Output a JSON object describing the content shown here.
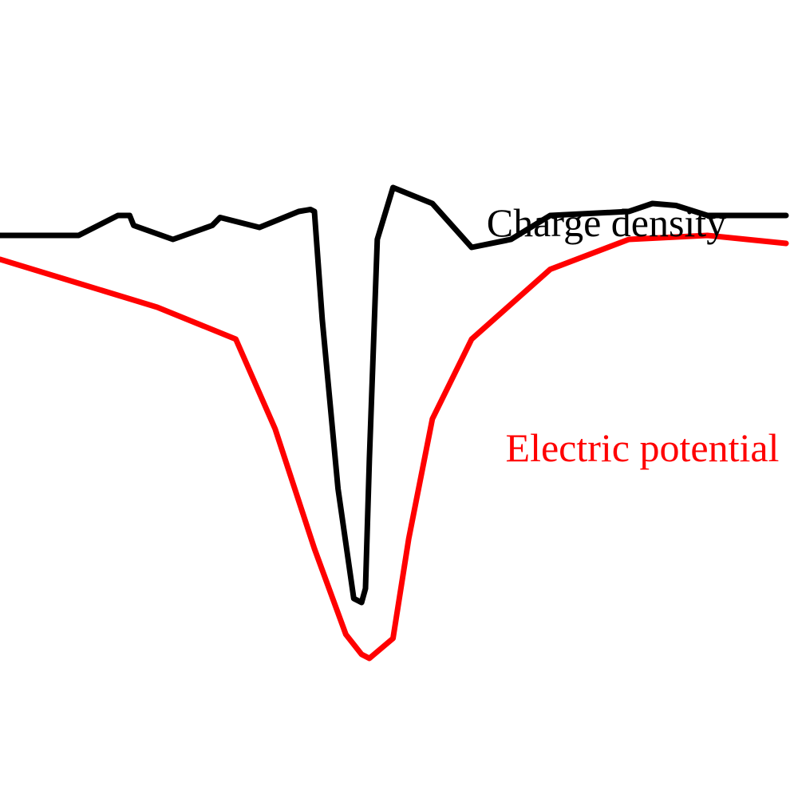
{
  "chart_data": {
    "type": "line",
    "title": "",
    "xlabel": "",
    "ylabel": "",
    "grid": false,
    "axes_visible": false,
    "series": [
      {
        "name": "Charge density",
        "color": "#000000",
        "label_placement": "above the curve, right side",
        "x": [
          0,
          5,
          10,
          15,
          16.5,
          17,
          22,
          27,
          28,
          33,
          38,
          39.5,
          40,
          41,
          43,
          45,
          46,
          46.5,
          47,
          48,
          50,
          55,
          60,
          65,
          70,
          80,
          83,
          86,
          90,
          100
        ],
        "values": [
          0.62,
          0.62,
          0.62,
          0.72,
          0.72,
          0.67,
          0.6,
          0.67,
          0.71,
          0.66,
          0.74,
          0.75,
          0.74,
          0.2,
          -0.65,
          -1.2,
          -1.22,
          -1.15,
          -0.5,
          0.6,
          0.86,
          0.78,
          0.56,
          0.6,
          0.72,
          0.74,
          0.78,
          0.77,
          0.72,
          0.72
        ]
      },
      {
        "name": "Electric potential",
        "color": "#ff0000",
        "label_placement": "below the curve, right side",
        "x": [
          0,
          10,
          20,
          30,
          35,
          40,
          44,
          46,
          47,
          50,
          52,
          55,
          60,
          70,
          80,
          90,
          100
        ],
        "values": [
          0.5,
          0.38,
          0.26,
          0.1,
          -0.35,
          -0.95,
          -1.38,
          -1.48,
          -1.5,
          -1.4,
          -0.9,
          -0.3,
          0.1,
          0.45,
          0.6,
          0.62,
          0.58
        ]
      }
    ],
    "xlim": [
      0,
      100
    ],
    "ylim": [
      -2.2,
      1.8
    ]
  }
}
